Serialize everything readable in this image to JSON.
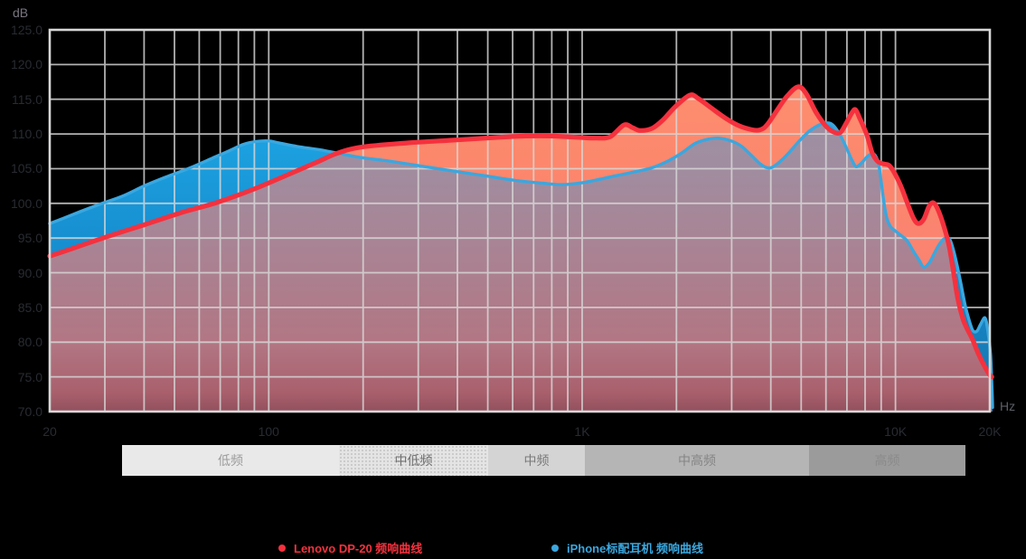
{
  "axes": {
    "y_unit_label": "dB",
    "x_unit_label": "Hz",
    "y_ticks": [
      {
        "value": 125,
        "label": "125.0"
      },
      {
        "value": 120,
        "label": "120.0"
      },
      {
        "value": 115,
        "label": "115.0"
      },
      {
        "value": 110,
        "label": "110.0"
      },
      {
        "value": 105,
        "label": "105.0"
      },
      {
        "value": 100,
        "label": "100.0"
      },
      {
        "value": 95,
        "label": "95.0"
      },
      {
        "value": 90,
        "label": "90.0"
      },
      {
        "value": 85,
        "label": "85.0"
      },
      {
        "value": 80,
        "label": "80.0"
      },
      {
        "value": 75,
        "label": "75.0"
      },
      {
        "value": 70,
        "label": "70.0"
      }
    ],
    "x_ticks": [
      {
        "value": 20,
        "label": "20"
      },
      {
        "value": 100,
        "label": "100"
      },
      {
        "value": 1000,
        "label": "1K"
      },
      {
        "value": 10000,
        "label": "10K"
      },
      {
        "value": 20000,
        "label": "20K"
      }
    ],
    "x_gridlines": [
      20,
      30,
      40,
      50,
      60,
      70,
      80,
      90,
      100,
      200,
      300,
      400,
      500,
      600,
      700,
      800,
      900,
      1000,
      2000,
      3000,
      4000,
      5000,
      6000,
      7000,
      8000,
      9000,
      10000,
      20000
    ]
  },
  "bands": [
    {
      "label": "低频"
    },
    {
      "label": "中低频"
    },
    {
      "label": "中频"
    },
    {
      "label": "中高频"
    },
    {
      "label": "高频"
    }
  ],
  "chart_data": {
    "type": "line",
    "x_scale": "log",
    "xlabel": "Hz",
    "ylabel": "dB",
    "xlim": [
      20,
      20000
    ],
    "ylim": [
      70,
      125
    ],
    "grid": true,
    "legend_position": "bottom",
    "series": [
      {
        "name": "Lenovo DP-20 频响曲线",
        "color": "#f5313e",
        "fill_color": "#fb8570",
        "points": [
          [
            20,
            92.4
          ],
          [
            23,
            93.3
          ],
          [
            27,
            94.4
          ],
          [
            33,
            95.7
          ],
          [
            40,
            96.9
          ],
          [
            52,
            98.6
          ],
          [
            68,
            100.1
          ],
          [
            89,
            102.0
          ],
          [
            116,
            104.2
          ],
          [
            142,
            105.9
          ],
          [
            165,
            107.2
          ],
          [
            197,
            108.1
          ],
          [
            275,
            108.7
          ],
          [
            384,
            109.1
          ],
          [
            536,
            109.5
          ],
          [
            660,
            109.7
          ],
          [
            800,
            109.7
          ],
          [
            975,
            109.5
          ],
          [
            1110,
            109.4
          ],
          [
            1230,
            109.6
          ],
          [
            1360,
            111.3
          ],
          [
            1450,
            110.9
          ],
          [
            1530,
            110.5
          ],
          [
            1670,
            110.8
          ],
          [
            1810,
            112.0
          ],
          [
            1990,
            114.0
          ],
          [
            2210,
            115.6
          ],
          [
            2350,
            115.1
          ],
          [
            2590,
            113.7
          ],
          [
            2860,
            112.3
          ],
          [
            3160,
            111.2
          ],
          [
            3490,
            110.6
          ],
          [
            3700,
            110.6
          ],
          [
            3890,
            111.3
          ],
          [
            4230,
            113.7
          ],
          [
            4520,
            115.5
          ],
          [
            4890,
            116.8
          ],
          [
            5190,
            115.8
          ],
          [
            5560,
            113.2
          ],
          [
            5980,
            111.2
          ],
          [
            6330,
            110.3
          ],
          [
            6660,
            110.2
          ],
          [
            6950,
            111.5
          ],
          [
            7250,
            113.0
          ],
          [
            7450,
            113.5
          ],
          [
            7680,
            112.3
          ],
          [
            8110,
            109.8
          ],
          [
            8420,
            107.3
          ],
          [
            8750,
            106.1
          ],
          [
            9130,
            105.7
          ],
          [
            9520,
            105.5
          ],
          [
            9860,
            104.6
          ],
          [
            10400,
            102.5
          ],
          [
            10900,
            100.1
          ],
          [
            11400,
            97.9
          ],
          [
            11800,
            97.1
          ],
          [
            12300,
            97.7
          ],
          [
            12800,
            99.6
          ],
          [
            13200,
            100.1
          ],
          [
            13600,
            99.3
          ],
          [
            14200,
            97.0
          ],
          [
            14800,
            94.0
          ],
          [
            15300,
            90.2
          ],
          [
            15800,
            86.3
          ],
          [
            16400,
            83.4
          ],
          [
            16900,
            82.0
          ],
          [
            17600,
            80.4
          ],
          [
            18400,
            78.3
          ],
          [
            19200,
            76.6
          ],
          [
            19900,
            75.4
          ],
          [
            20300,
            75.0
          ]
        ]
      },
      {
        "name": "iPhone标配耳机 频响曲线",
        "color": "#3aa7df",
        "fill_color": "#1b9cdc",
        "points": [
          [
            20,
            97.1
          ],
          [
            22,
            97.8
          ],
          [
            25,
            98.8
          ],
          [
            29,
            99.9
          ],
          [
            34,
            101.0
          ],
          [
            40,
            102.5
          ],
          [
            47,
            103.8
          ],
          [
            56,
            105.1
          ],
          [
            66,
            106.5
          ],
          [
            75,
            107.6
          ],
          [
            83,
            108.5
          ],
          [
            91,
            108.9
          ],
          [
            100,
            109.0
          ],
          [
            108,
            108.7
          ],
          [
            123,
            108.2
          ],
          [
            146,
            107.7
          ],
          [
            167,
            107.2
          ],
          [
            197,
            106.6
          ],
          [
            241,
            106.1
          ],
          [
            304,
            105.4
          ],
          [
            383,
            104.7
          ],
          [
            485,
            104.0
          ],
          [
            614,
            103.3
          ],
          [
            750,
            102.9
          ],
          [
            860,
            102.7
          ],
          [
            1010,
            103.0
          ],
          [
            1200,
            103.7
          ],
          [
            1420,
            104.4
          ],
          [
            1660,
            105.1
          ],
          [
            1880,
            106.1
          ],
          [
            2070,
            107.2
          ],
          [
            2290,
            108.6
          ],
          [
            2500,
            109.2
          ],
          [
            2720,
            109.4
          ],
          [
            2990,
            109.0
          ],
          [
            3230,
            108.2
          ],
          [
            3470,
            106.9
          ],
          [
            3720,
            105.6
          ],
          [
            3940,
            105.1
          ],
          [
            4140,
            105.5
          ],
          [
            4480,
            106.9
          ],
          [
            4910,
            108.9
          ],
          [
            5310,
            110.4
          ],
          [
            5710,
            111.3
          ],
          [
            6030,
            111.6
          ],
          [
            6310,
            111.3
          ],
          [
            6650,
            109.9
          ],
          [
            6970,
            108.0
          ],
          [
            7250,
            106.3
          ],
          [
            7490,
            105.3
          ],
          [
            7790,
            105.8
          ],
          [
            8110,
            106.7
          ],
          [
            8390,
            107.1
          ],
          [
            8620,
            106.9
          ],
          [
            8850,
            105.5
          ],
          [
            9030,
            102.6
          ],
          [
            9200,
            99.9
          ],
          [
            9380,
            97.9
          ],
          [
            9620,
            96.7
          ],
          [
            9930,
            96.1
          ],
          [
            10400,
            95.4
          ],
          [
            10900,
            94.6
          ],
          [
            11400,
            93.1
          ],
          [
            11900,
            91.8
          ],
          [
            12300,
            90.8
          ],
          [
            12800,
            91.4
          ],
          [
            13300,
            92.8
          ],
          [
            13800,
            94.1
          ],
          [
            14400,
            95.0
          ],
          [
            14900,
            94.8
          ],
          [
            15400,
            92.8
          ],
          [
            16100,
            88.9
          ],
          [
            16700,
            85.2
          ],
          [
            17300,
            82.7
          ],
          [
            17700,
            81.6
          ],
          [
            18200,
            81.6
          ],
          [
            18700,
            82.6
          ],
          [
            19300,
            83.5
          ],
          [
            19700,
            81.7
          ],
          [
            20100,
            78.2
          ],
          [
            20300,
            73.9
          ],
          [
            20400,
            70.6
          ]
        ]
      }
    ]
  }
}
